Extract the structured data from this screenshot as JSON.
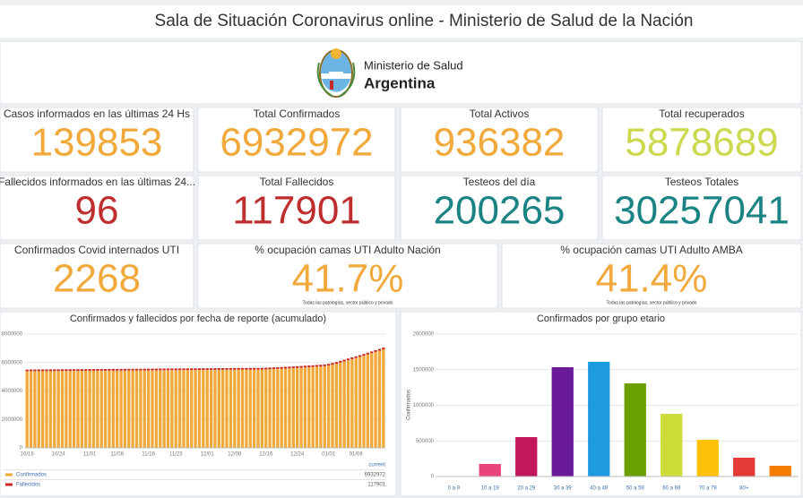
{
  "header": {
    "title": "Sala de Situación Coronavirus online - Ministerio de Salud de la Nación",
    "logo_line1": "Ministerio de Salud",
    "logo_line2": "Argentina"
  },
  "cards": [
    {
      "label": "Casos informados en las últimas 24 Hs",
      "value": 139853,
      "color": "#f2a93b"
    },
    {
      "label": "Total Confirmados",
      "value": 6932972,
      "color": "#f2a93b"
    },
    {
      "label": "Total Activos",
      "value": 936382,
      "color": "#f2a93b"
    },
    {
      "label": "Total recuperados",
      "value": 5878689,
      "color": "#cbd94e"
    },
    {
      "label": "Fallecidos informados en las últimas 24...",
      "value": 96,
      "color": "#bf2e2e"
    },
    {
      "label": "Total Fallecidos",
      "value": 117901,
      "color": "#bf2e2e"
    },
    {
      "label": "Testeos del día",
      "value": 200265,
      "color": "#1b8383"
    },
    {
      "label": "Testeos Totales",
      "value": 30257041,
      "color": "#1b8383"
    },
    {
      "label": "Confirmados Covid internados UTI",
      "value": 2268,
      "color": "#f2a93b"
    },
    {
      "label": "% ocupación camas UTI Adulto Nación",
      "value": "41.7%",
      "note": "Todas las patologías, sector público y privado",
      "color": "#f2a93b"
    },
    {
      "label": "% ocupación camas UTI Adulto AMBA",
      "value": "41.4%",
      "note": "Todas las patologías, sector público y privado",
      "color": "#f2a93b"
    }
  ],
  "chart_data": [
    {
      "type": "bar",
      "stacked": true,
      "title": "Confirmados y fallecidos por fecha de reporte (acumulado)",
      "legend_header": "current",
      "categories": [
        "10/16",
        null,
        null,
        null,
        null,
        null,
        null,
        null,
        "10/24",
        null,
        null,
        null,
        null,
        null,
        null,
        null,
        "11/01",
        null,
        null,
        null,
        null,
        null,
        null,
        "11/08",
        null,
        null,
        null,
        null,
        null,
        null,
        null,
        "11/16",
        null,
        null,
        null,
        null,
        null,
        null,
        "11/23",
        null,
        null,
        null,
        null,
        null,
        null,
        null,
        "12/01",
        null,
        null,
        null,
        null,
        null,
        null,
        "12/08",
        null,
        null,
        null,
        null,
        null,
        null,
        null,
        "12/16",
        null,
        null,
        null,
        null,
        null,
        null,
        null,
        "12/24",
        null,
        null,
        null,
        null,
        null,
        null,
        null,
        "01/01",
        null,
        null,
        null,
        null,
        null,
        null,
        "01/08",
        null,
        null,
        null,
        null,
        null,
        null,
        null
      ],
      "series": [
        {
          "name": "Confirmados",
          "color": "#f2a93b",
          "values": [
            5390000,
            5392000,
            5394000,
            5396000,
            5398000,
            5400000,
            5402000,
            5404000,
            5406000,
            5408000,
            5410000,
            5412000,
            5414000,
            5416000,
            5418000,
            5420000,
            5422000,
            5424000,
            5426000,
            5428000,
            5430000,
            5432000,
            5434000,
            5436000,
            5438000,
            5440000,
            5442000,
            5444000,
            5446000,
            5448000,
            5450000,
            5452000,
            5454000,
            5456000,
            5458000,
            5460000,
            5462000,
            5464000,
            5466000,
            5468000,
            5470000,
            5472000,
            5474000,
            5476000,
            5478000,
            5480000,
            5482000,
            5484000,
            5486000,
            5488000,
            5490000,
            5492000,
            5494000,
            5496000,
            5498000,
            5500000,
            5502000,
            5504000,
            5506000,
            5508000,
            5510000,
            5520000,
            5530000,
            5540000,
            5552000,
            5565000,
            5578000,
            5592000,
            5607000,
            5622000,
            5638000,
            5655000,
            5672000,
            5690000,
            5708000,
            5727000,
            5747000,
            5790000,
            5850000,
            5920000,
            6000000,
            6080000,
            6160000,
            6240000,
            6320000,
            6400000,
            6480000,
            6570000,
            6660000,
            6750000,
            6840000,
            6932972
          ]
        },
        {
          "name": "Fallecidos",
          "color": "#c62828",
          "values": [
            115200,
            115230,
            115260,
            115290,
            115320,
            115350,
            115380,
            115410,
            115440,
            115470,
            115500,
            115530,
            115560,
            115590,
            115620,
            115650,
            115680,
            115710,
            115740,
            115770,
            115800,
            115830,
            115860,
            115890,
            115920,
            115950,
            115980,
            116010,
            116040,
            116070,
            116100,
            116130,
            116160,
            116190,
            116220,
            116250,
            116280,
            116310,
            116340,
            116370,
            116400,
            116430,
            116460,
            116490,
            116520,
            116550,
            116580,
            116610,
            116640,
            116670,
            116700,
            116730,
            116760,
            116790,
            116820,
            116850,
            116880,
            116910,
            116940,
            116970,
            117000,
            117030,
            117060,
            117090,
            117120,
            117150,
            117180,
            117210,
            117240,
            117270,
            117300,
            117330,
            117360,
            117390,
            117420,
            117450,
            117480,
            117510,
            117540,
            117570,
            117600,
            117630,
            117660,
            117690,
            117720,
            117750,
            117780,
            117810,
            117840,
            117870,
            117900,
            117901
          ]
        }
      ],
      "ylim": [
        0,
        8000000
      ],
      "yticks": [
        0,
        2000000,
        4000000,
        6000000,
        8000000
      ],
      "grid": true
    },
    {
      "type": "bar",
      "title": "Confirmados por grupo etario",
      "y_label": "Confirmados",
      "categories": [
        "0 a 9",
        "10 a 19",
        "20 a 29",
        "30 a 39",
        "40 a 49",
        "50 a 59",
        "60 a 69",
        "70 a 79",
        "80+",
        null
      ],
      "values": [
        0,
        176000,
        553000,
        1535000,
        1610000,
        1308000,
        880000,
        516000,
        264000,
        151000
      ],
      "colors": [
        "#e8457a",
        "#e8457a",
        "#c2185b",
        "#6a1b9a",
        "#1e9be0",
        "#6aa100",
        "#cddc39",
        "#ffc107",
        "#e53935",
        "#f57c00"
      ],
      "ylim": [
        0,
        2000000
      ],
      "yticks": [
        0,
        500000,
        1000000,
        1500000,
        2000000
      ],
      "grid": true
    }
  ]
}
